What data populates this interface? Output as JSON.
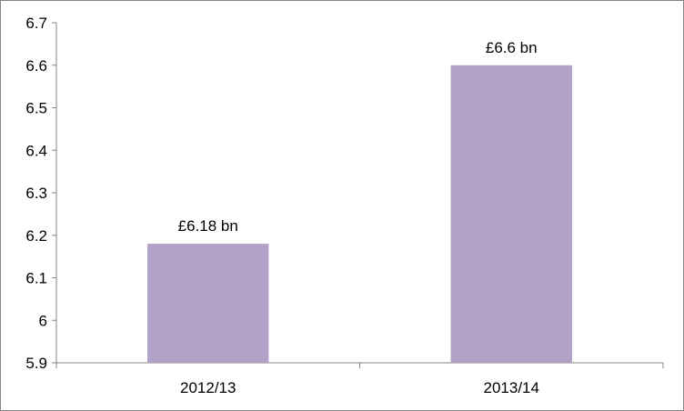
{
  "chart_data": {
    "type": "bar",
    "categories": [
      "2012/13",
      "2013/14"
    ],
    "values": [
      6.18,
      6.6
    ],
    "data_labels": [
      "£6.18 bn",
      "£6.6 bn"
    ],
    "ylim": [
      5.9,
      6.7
    ],
    "yticks": [
      5.9,
      6,
      6.1,
      6.2,
      6.3,
      6.4,
      6.5,
      6.6,
      6.7
    ],
    "ytick_labels": [
      "5.9",
      "6",
      "6.1",
      "6.2",
      "6.3",
      "6.4",
      "6.5",
      "6.6",
      "6.7"
    ],
    "grid": false,
    "legend": "none",
    "bar_color": "#b3a2c7"
  }
}
